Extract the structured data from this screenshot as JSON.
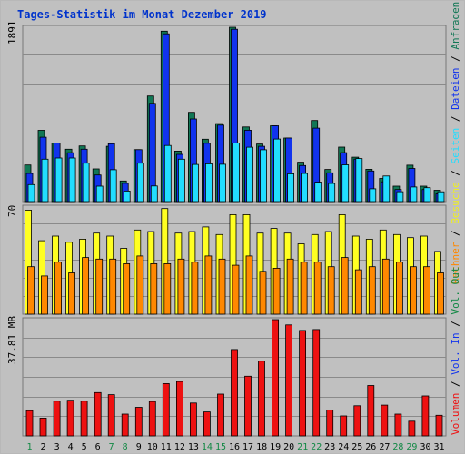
{
  "title": "Tages-Statistik im Monat Dezember 2019",
  "colors": {
    "background": "#c0c0c0",
    "anfragen": "#117755",
    "dateien": "#1133ee",
    "seiten": "#22ddff",
    "besuche": "#ffff22",
    "rechner": "#ff8800",
    "kbyte": "#ee1111",
    "weekend_day": "#118844",
    "weekday": "#000000"
  },
  "chart_data": [
    {
      "type": "bar",
      "panel": "top",
      "max_label": "1891",
      "ylim": [
        0,
        1891
      ],
      "categories": [
        "1",
        "2",
        "3",
        "4",
        "5",
        "6",
        "7",
        "8",
        "9",
        "10",
        "11",
        "12",
        "13",
        "14",
        "15",
        "16",
        "17",
        "18",
        "19",
        "20",
        "21",
        "22",
        "23",
        "24",
        "25",
        "26",
        "27",
        "28",
        "29",
        "30",
        "31"
      ],
      "weekend_days": [
        "1",
        "7",
        "8",
        "14",
        "15",
        "21",
        "22",
        "28",
        "29"
      ],
      "series": [
        {
          "name": "Anfragen",
          "values": [
            397,
            773,
            634,
            568,
            604,
            355,
            600,
            224,
            563,
            1145,
            1849,
            548,
            968,
            677,
            846,
            1891,
            810,
            624,
            822,
            689,
            427,
            880,
            349,
            591,
            482,
            351,
            251,
            167,
            395,
            167,
            123
          ]
        },
        {
          "name": "Dateien",
          "values": [
            305,
            698,
            634,
            530,
            568,
            289,
            627,
            198,
            563,
            1066,
            1820,
            512,
            896,
            632,
            829,
            1869,
            774,
            600,
            822,
            689,
            391,
            797,
            312,
            531,
            461,
            332,
            215,
            131,
            359,
            131,
            84
          ]
        },
        {
          "name": "Seiten",
          "values": [
            184,
            460,
            473,
            473,
            417,
            167,
            346,
            114,
            417,
            169,
            609,
            460,
            403,
            410,
            405,
            634,
            590,
            562,
            679,
            301,
            305,
            211,
            197,
            399,
            467,
            139,
            278,
            107,
            159,
            151,
            106
          ]
        }
      ],
      "legend": [
        "Anfragen",
        "Dateien",
        "Seiten"
      ]
    },
    {
      "type": "bar",
      "panel": "middle",
      "max_label": "70",
      "ylim": [
        0,
        70
      ],
      "categories": [
        "1",
        "2",
        "3",
        "4",
        "5",
        "6",
        "7",
        "8",
        "9",
        "10",
        "11",
        "12",
        "13",
        "14",
        "15",
        "16",
        "17",
        "18",
        "19",
        "20",
        "21",
        "22",
        "23",
        "24",
        "25",
        "26",
        "27",
        "28",
        "29",
        "30",
        "31"
      ],
      "series": [
        {
          "name": "Besuche",
          "values": [
            68,
            48,
            51,
            47,
            49,
            53,
            51,
            43,
            55,
            54,
            69,
            53,
            54,
            57,
            52,
            65,
            65,
            53,
            56,
            53,
            46,
            52,
            54,
            65,
            51,
            49,
            55,
            52,
            50,
            51,
            41
          ]
        },
        {
          "name": "Rechner",
          "values": [
            31,
            25,
            34,
            27,
            37,
            36,
            36,
            33,
            38,
            33,
            33,
            36,
            34,
            38,
            36,
            32,
            38,
            28,
            30,
            36,
            34,
            34,
            31,
            37,
            29,
            31,
            36,
            34,
            31,
            31,
            27
          ]
        }
      ],
      "legend": [
        "Besuche",
        "Rechner"
      ]
    },
    {
      "type": "bar",
      "panel": "bottom",
      "max_label": "37.81 MB",
      "unit": "MB",
      "ylim": [
        0,
        37.81
      ],
      "categories": [
        "1",
        "2",
        "3",
        "4",
        "5",
        "6",
        "7",
        "8",
        "9",
        "10",
        "11",
        "12",
        "13",
        "14",
        "15",
        "16",
        "17",
        "18",
        "19",
        "20",
        "21",
        "22",
        "23",
        "24",
        "25",
        "26",
        "27",
        "28",
        "29",
        "30",
        "31"
      ],
      "series": [
        {
          "name": "Volumen",
          "values": [
            8.2,
            5.8,
            11.3,
            11.6,
            11.3,
            14.1,
            13.4,
            7.1,
            9.3,
            11.2,
            17.0,
            17.7,
            10.7,
            7.8,
            13.6,
            28.1,
            19.4,
            24.3,
            37.8,
            36.1,
            34.3,
            34.6,
            8.4,
            6.5,
            9.8,
            16.4,
            10.0,
            7.1,
            4.8,
            13.0,
            6.7
          ]
        }
      ],
      "legend": [
        "Volumen",
        "Vol. In",
        "Vol. Out"
      ]
    }
  ],
  "right_legend": {
    "upper": [
      {
        "text": "Anfragen",
        "color": "#117755"
      },
      {
        "text": "Dateien",
        "color": "#1133ee"
      },
      {
        "text": "Seiten",
        "color": "#22ddff"
      },
      {
        "text": "Besuche",
        "color": "#eeee22"
      },
      {
        "text": "Rechner",
        "color": "#ff8800"
      }
    ],
    "lower": [
      {
        "text": "Volumen",
        "color": "#ee1111"
      },
      {
        "text": "Vol. In",
        "color": "#1133ee"
      },
      {
        "text": "Vol. Out",
        "color": "#118844"
      }
    ]
  }
}
